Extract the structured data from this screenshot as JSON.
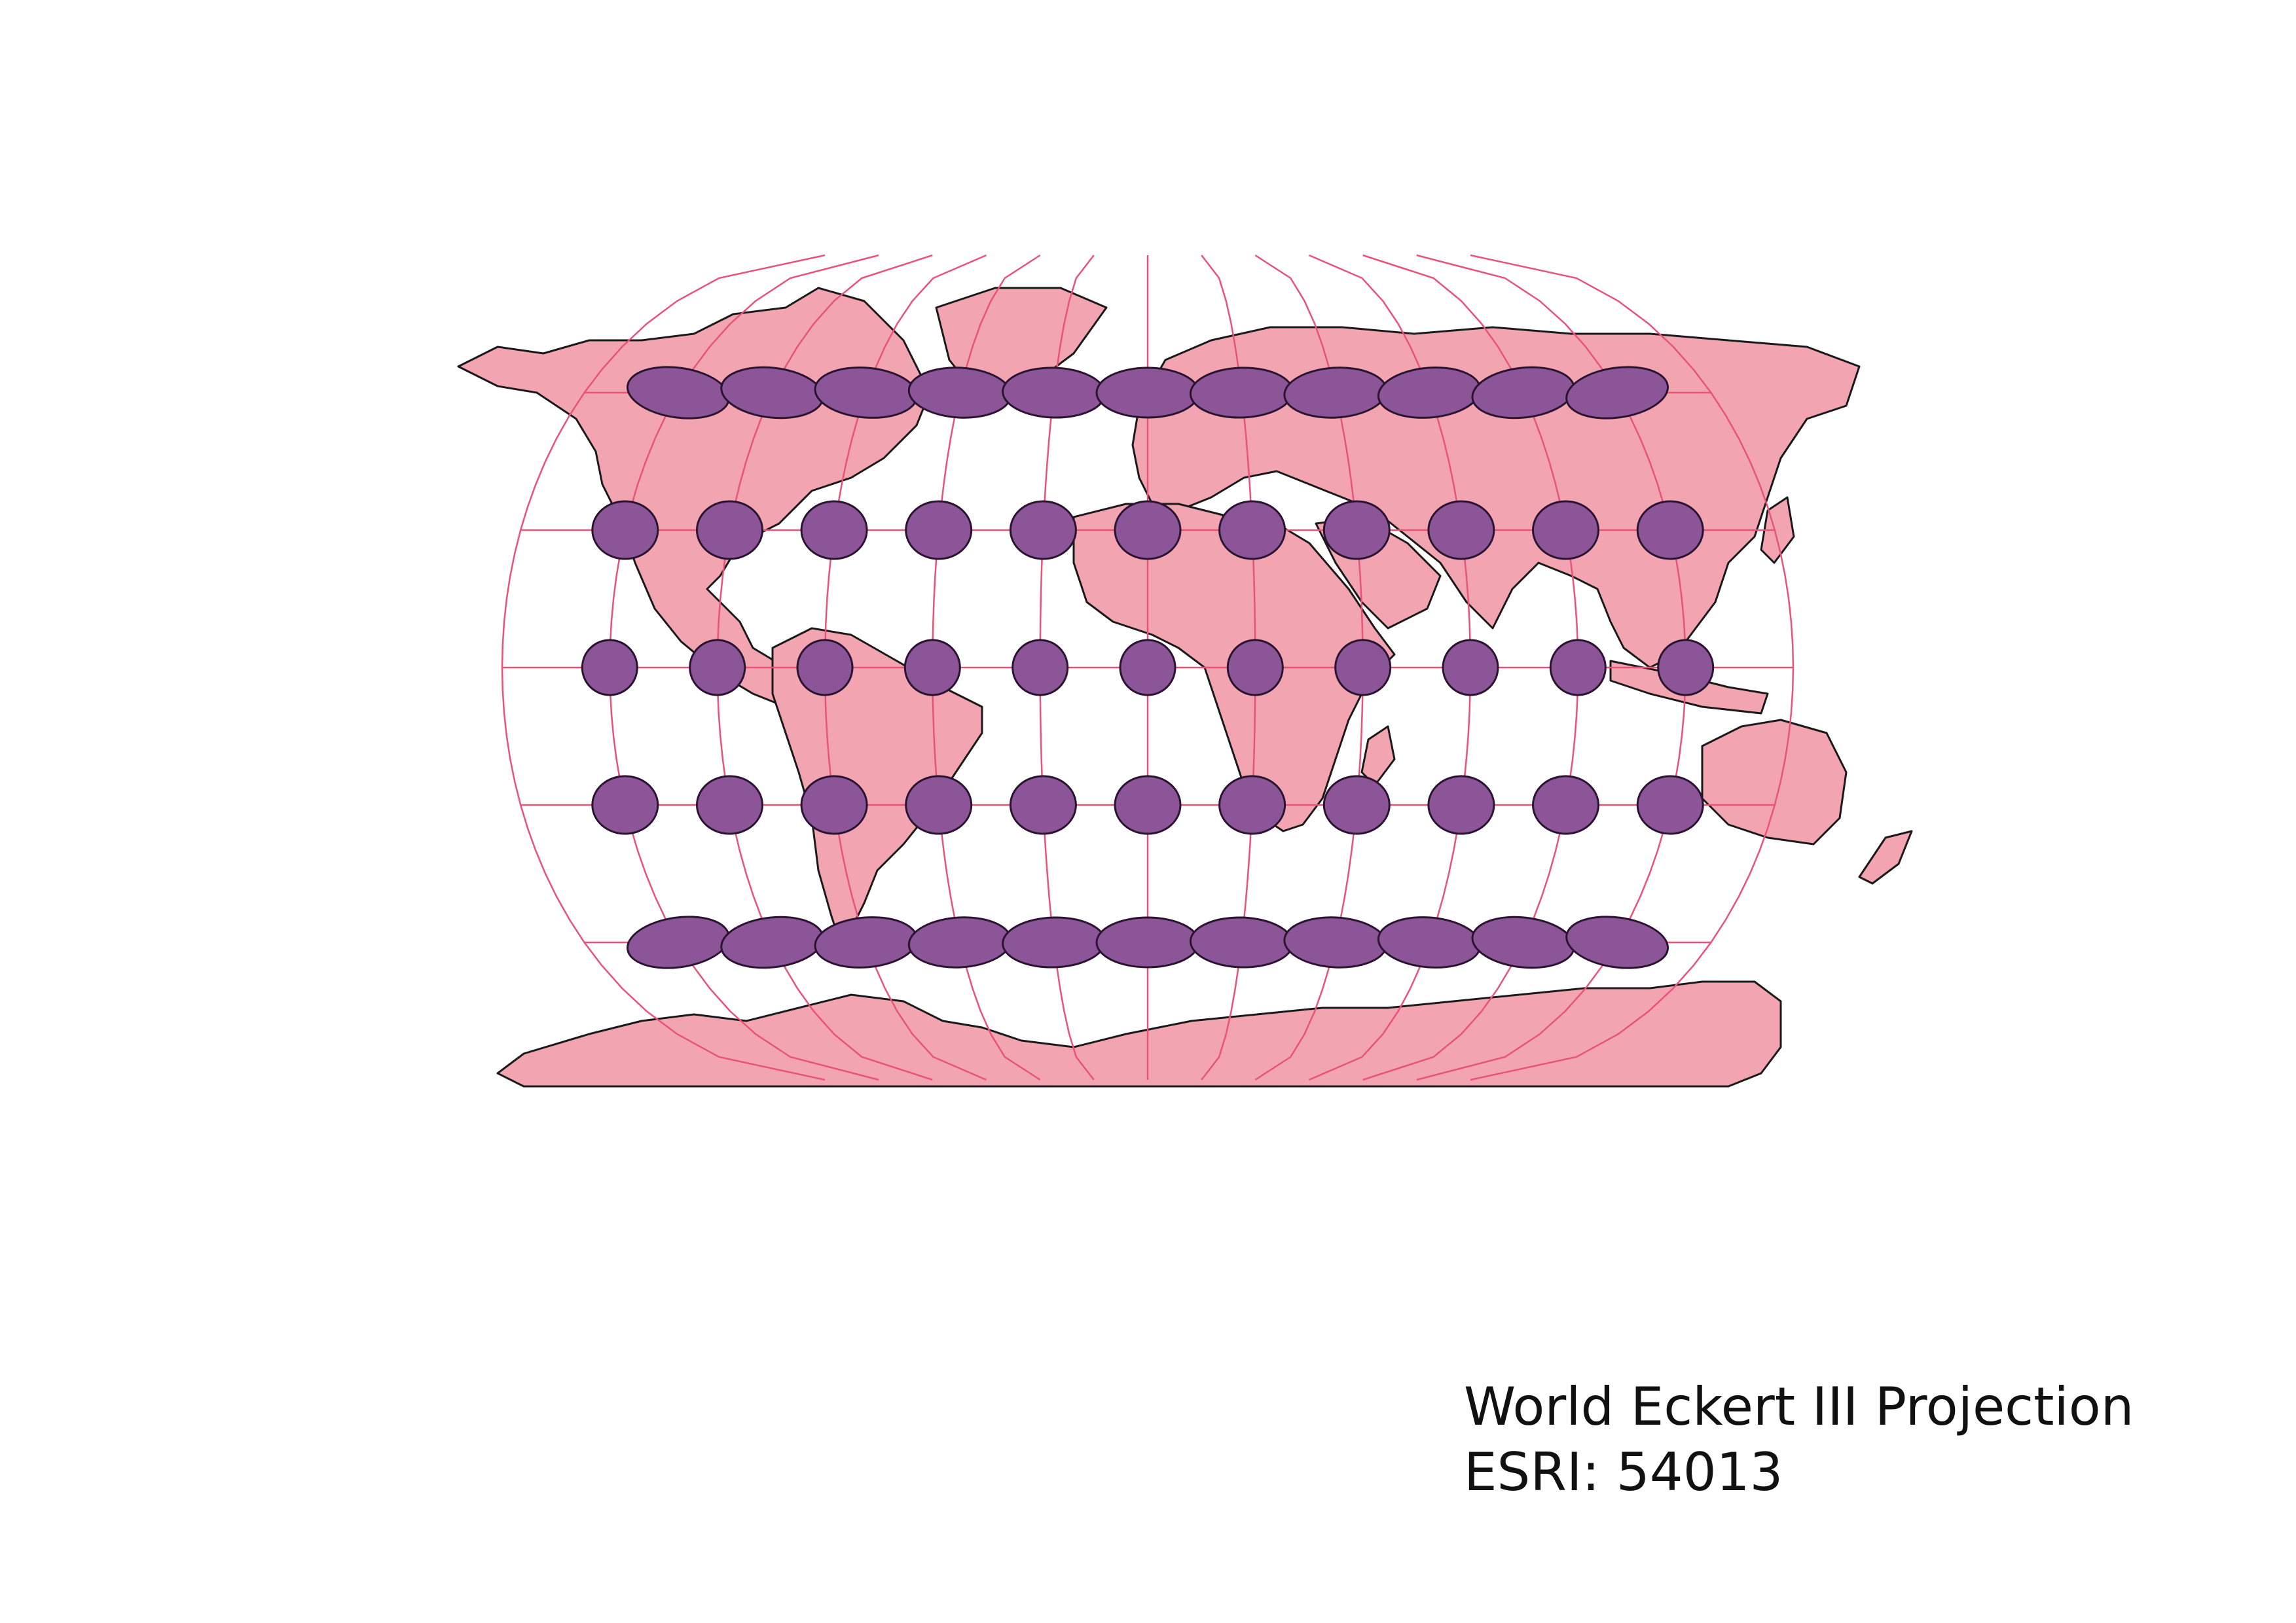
{
  "caption": {
    "title": "World Eckert III Projection",
    "code": "ESRI: 54013"
  },
  "colors": {
    "background": "#ffffff",
    "land_fill": "#f2a5b0",
    "land_stroke": "#1a1a1a",
    "graticule": "#e8537a",
    "ellipse_fill": "#8b5598",
    "ellipse_stroke": "#2a1430"
  },
  "map": {
    "projection": "Eckert III",
    "indicatrix_rows": 5,
    "indicatrix_cols": 11
  }
}
